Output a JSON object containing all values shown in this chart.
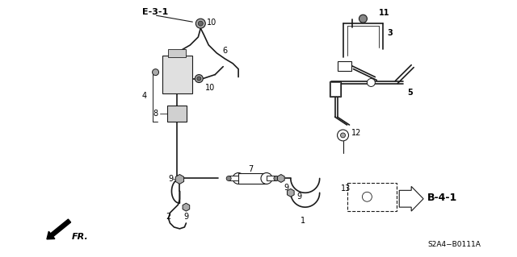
{
  "background_color": "#ffffff",
  "diagram_id": "S2A4−B0111A",
  "reference_e31": "E-3-1",
  "reference_b41": "B-4-1",
  "fr_label": "FR.",
  "line_color": "#1a1a1a",
  "text_color": "#000000",
  "label_fontsize": 7.0,
  "figsize": [
    6.4,
    3.19
  ],
  "dpi": 100
}
